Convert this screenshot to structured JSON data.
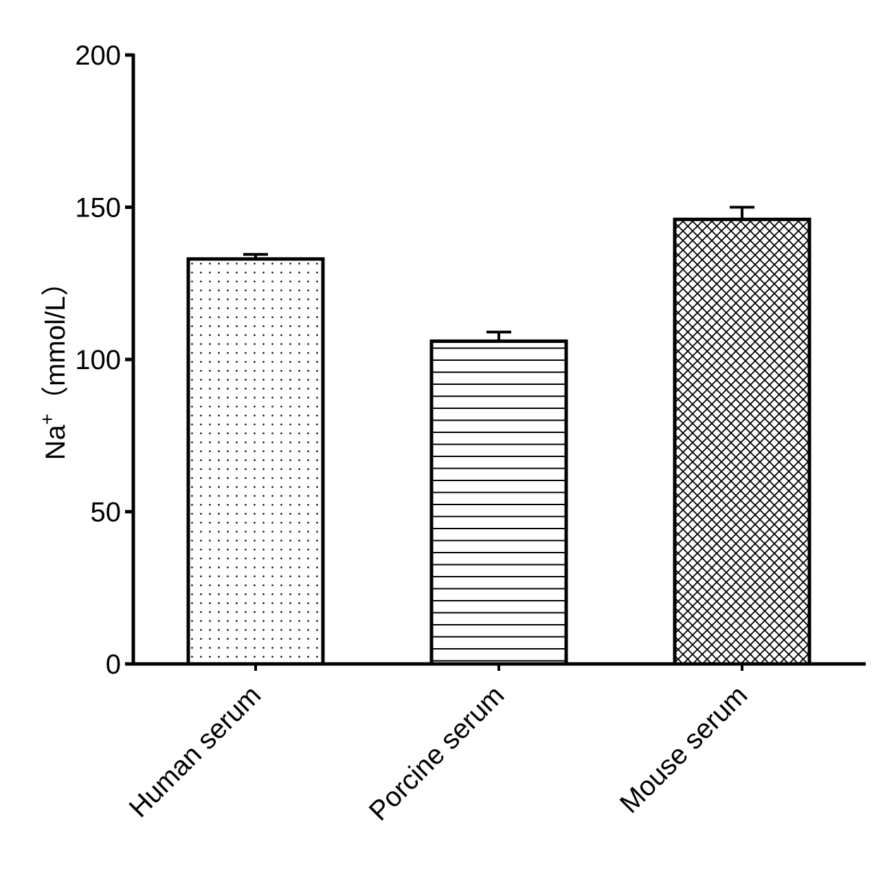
{
  "chart_data": {
    "type": "bar",
    "title": "",
    "xlabel": "",
    "ylabel_main": "Na",
    "ylabel_sup": "+",
    "ylabel_unit": "（mmol/L）",
    "ylim": [
      0,
      200
    ],
    "yticks": [
      0,
      50,
      100,
      150,
      200
    ],
    "grid": false,
    "categories": [
      "Human serum",
      "Porcine serum",
      "Mouse serum"
    ],
    "values": [
      133,
      106,
      146
    ],
    "errors": [
      1.5,
      3,
      4
    ],
    "patterns": [
      "dots",
      "horizontal-lines",
      "crosshatch"
    ],
    "colors": {
      "bar_fill": "#ffffff",
      "stroke": "#000000"
    }
  }
}
